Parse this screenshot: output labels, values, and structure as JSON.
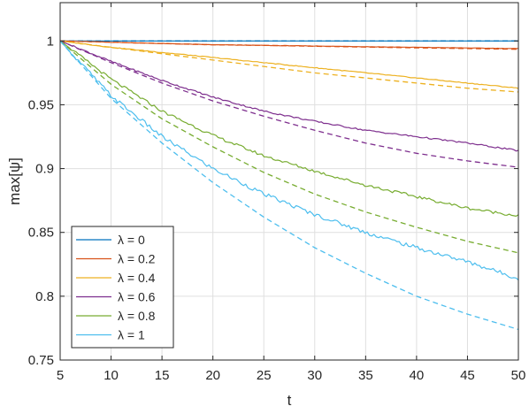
{
  "chart_data": {
    "type": "line",
    "title": "",
    "xlabel": "t",
    "ylabel": "max[ψ]",
    "xlim": [
      5,
      50
    ],
    "ylim": [
      0.75,
      1.03
    ],
    "xticks": [
      5,
      10,
      15,
      20,
      25,
      30,
      35,
      40,
      45,
      50
    ],
    "yticks": [
      0.75,
      0.8,
      0.85,
      0.9,
      0.95,
      1
    ],
    "xtick_labels": [
      "5",
      "10",
      "15",
      "20",
      "25",
      "30",
      "35",
      "40",
      "45",
      "50"
    ],
    "ytick_labels": [
      "0.75",
      "0.8",
      "0.85",
      "0.9",
      "0.95",
      "1"
    ],
    "grid": true,
    "legend_position": "bottom-left",
    "x": [
      5,
      10,
      15,
      20,
      25,
      30,
      35,
      40,
      45,
      50
    ],
    "series": [
      {
        "name": "λ = 0",
        "color": "#0072BD",
        "solid": [
          1.0,
          1.0,
          1.0,
          1.0,
          1.0,
          1.0,
          1.0,
          1.0,
          1.0,
          1.0
        ],
        "dashed": [
          1.0,
          1.0,
          1.0,
          1.0,
          1.0,
          1.0,
          1.0,
          1.0,
          1.0,
          1.0
        ]
      },
      {
        "name": "λ = 0.2",
        "color": "#D95319",
        "solid": [
          1.0,
          0.999,
          0.998,
          0.997,
          0.9965,
          0.996,
          0.9955,
          0.995,
          0.9945,
          0.994
        ],
        "dashed": [
          1.0,
          0.999,
          0.998,
          0.997,
          0.9965,
          0.9958,
          0.9952,
          0.9946,
          0.994,
          0.9935
        ]
      },
      {
        "name": "λ = 0.4",
        "color": "#EDB120",
        "solid": [
          1.0,
          0.995,
          0.991,
          0.987,
          0.983,
          0.979,
          0.975,
          0.971,
          0.967,
          0.963
        ],
        "dashed": [
          1.0,
          0.995,
          0.99,
          0.985,
          0.98,
          0.975,
          0.971,
          0.967,
          0.963,
          0.96
        ]
      },
      {
        "name": "λ = 0.6",
        "color": "#7E2F8E",
        "solid": [
          1.0,
          0.984,
          0.969,
          0.956,
          0.945,
          0.937,
          0.93,
          0.925,
          0.92,
          0.914
        ],
        "dashed": [
          1.0,
          0.983,
          0.967,
          0.953,
          0.941,
          0.93,
          0.92,
          0.912,
          0.906,
          0.901
        ]
      },
      {
        "name": "λ = 0.8",
        "color": "#77AC30",
        "solid": [
          1.0,
          0.97,
          0.945,
          0.926,
          0.91,
          0.898,
          0.887,
          0.878,
          0.869,
          0.863
        ],
        "dashed": [
          1.0,
          0.966,
          0.939,
          0.917,
          0.897,
          0.88,
          0.866,
          0.854,
          0.843,
          0.834
        ]
      },
      {
        "name": "λ = 1",
        "color": "#4DBEEE",
        "solid": [
          1.0,
          0.957,
          0.925,
          0.9,
          0.88,
          0.864,
          0.85,
          0.838,
          0.827,
          0.814
        ],
        "dashed": [
          1.0,
          0.955,
          0.92,
          0.889,
          0.862,
          0.838,
          0.818,
          0.8,
          0.786,
          0.774
        ]
      }
    ]
  }
}
